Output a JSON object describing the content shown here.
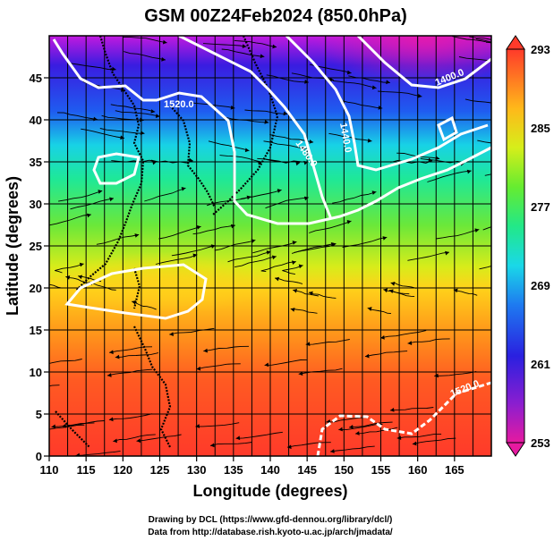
{
  "title": "GSM 00Z24Feb2024 (850.0hPa)",
  "x_axis": {
    "label": "Longitude (degrees)",
    "min": 110,
    "max": 170,
    "ticks": [
      110,
      115,
      120,
      125,
      130,
      135,
      140,
      145,
      150,
      155,
      160,
      165
    ]
  },
  "y_axis": {
    "label": "Latitude  (degrees)",
    "min": 0,
    "max": 50,
    "ticks": [
      0,
      5,
      10,
      15,
      20,
      25,
      30,
      35,
      40,
      45
    ]
  },
  "colorbar": {
    "min": 253,
    "max": 293,
    "labels": [
      293,
      285,
      277,
      269,
      261,
      253
    ],
    "colors": [
      "#d51a8c",
      "#9a1ec4",
      "#2a1fe0",
      "#1e6ef0",
      "#1fc8f0",
      "#19e8a8",
      "#4ef040",
      "#b6f21c",
      "#ffd400",
      "#ff8a1a",
      "#ff3a2a"
    ]
  },
  "contours": [
    {
      "label": "1520.0"
    },
    {
      "label": "1480.0"
    },
    {
      "label": "1440.0"
    },
    {
      "label": "1400.0"
    },
    {
      "label": "1520.0"
    }
  ],
  "credits": {
    "line1": "Drawing by DCL (https://www.gfd-dennou.org/library/dcl/)",
    "line2": "Data from http://database.rish.kyoto-u.ac.jp/arch/jmadata/"
  }
}
